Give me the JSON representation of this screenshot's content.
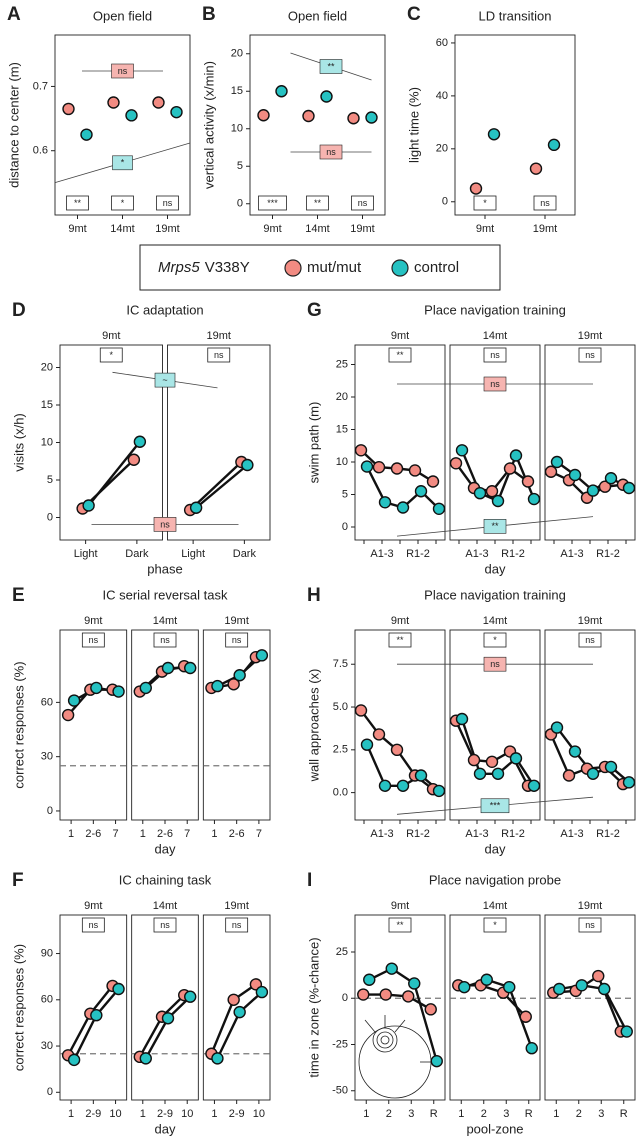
{
  "legend": {
    "gene": "Mrps5",
    "allele": "V338Y",
    "entries": [
      {
        "name": "mut/mut",
        "color": "#f28b82"
      },
      {
        "name": "control",
        "color": "#26c2c2"
      }
    ]
  },
  "chart_data": [
    {
      "type": "dot",
      "letter": "A",
      "title": "Open field",
      "ylabel": "distance to center (m)",
      "ylim": [
        0.5,
        0.78
      ],
      "yticks": [
        0.6,
        0.7
      ],
      "categories": [
        "9mt",
        "14mt",
        "19mt"
      ],
      "category_sigs": [
        "**",
        "*",
        "ns"
      ],
      "series": [
        {
          "values": [
            0.665,
            0.675,
            0.675
          ]
        },
        {
          "values": [
            0.625,
            0.655,
            0.66
          ]
        }
      ],
      "annotations": [
        {
          "text": "ns",
          "color": "#f6b4b0"
        },
        {
          "text": "*",
          "color": "#a9e6e6"
        }
      ]
    },
    {
      "type": "dot",
      "letter": "B",
      "title": "Open field",
      "ylabel": "vertical activity (x/min)",
      "ylim": [
        -1.5,
        22.5
      ],
      "yticks": [
        0,
        5,
        10,
        15,
        20
      ],
      "categories": [
        "9mt",
        "14mt",
        "19mt"
      ],
      "category_sigs": [
        "***",
        "**",
        "ns"
      ],
      "series": [
        {
          "values": [
            11.8,
            11.7,
            11.4
          ]
        },
        {
          "values": [
            15.0,
            14.3,
            11.5
          ]
        }
      ],
      "annotations": [
        {
          "text": "**",
          "color": "#a9e6e6"
        },
        {
          "text": "ns",
          "color": "#f6b4b0"
        }
      ]
    },
    {
      "type": "dot",
      "letter": "C",
      "title": "LD transition",
      "ylabel": "light time (%)",
      "ylim": [
        -5,
        63
      ],
      "yticks": [
        0,
        20,
        40,
        60
      ],
      "categories": [
        "9mt",
        "19mt"
      ],
      "category_sigs": [
        "*",
        "ns"
      ],
      "series": [
        {
          "values": [
            5,
            12.5
          ]
        },
        {
          "values": [
            25.5,
            21.5
          ]
        }
      ],
      "annotations": []
    },
    {
      "type": "line",
      "letter": "D",
      "title": "IC adaptation",
      "ylabel": "visits (x/h)",
      "xlabel": "phase",
      "ylim": [
        -3,
        23
      ],
      "yticks": [
        0,
        5,
        10,
        15,
        20
      ],
      "facets": [
        {
          "label": "9mt",
          "sig": "*",
          "categories": [
            "Light",
            "Dark"
          ],
          "series": [
            {
              "values": [
                1.2,
                7.7
              ]
            },
            {
              "values": [
                1.6,
                10.1
              ]
            }
          ]
        },
        {
          "label": "19mt",
          "sig": "ns",
          "categories": [
            "Light",
            "Dark"
          ],
          "series": [
            {
              "values": [
                1.0,
                7.4
              ]
            },
            {
              "values": [
                1.3,
                7.0
              ]
            }
          ]
        }
      ],
      "annotations": [
        {
          "text": "~",
          "color": "#a9e6e6"
        },
        {
          "text": "ns",
          "color": "#f6b4b0"
        }
      ]
    },
    {
      "type": "line",
      "letter": "E",
      "title": "IC serial reversal task",
      "ylabel": "correct responses (%)",
      "xlabel": "day",
      "ylim": [
        -5,
        100
      ],
      "yticks": [
        0,
        30,
        60
      ],
      "reference_line": 25,
      "facets": [
        {
          "label": "9mt",
          "sig": "ns",
          "categories": [
            "1",
            "2-6",
            "7"
          ],
          "series": [
            {
              "values": [
                53,
                67,
                67
              ]
            },
            {
              "values": [
                61,
                68,
                66
              ]
            }
          ]
        },
        {
          "label": "14mt",
          "sig": "ns",
          "categories": [
            "1",
            "2-6",
            "7"
          ],
          "series": [
            {
              "values": [
                66,
                77,
                80
              ]
            },
            {
              "values": [
                68,
                79,
                79
              ]
            }
          ]
        },
        {
          "label": "19mt",
          "sig": "ns",
          "categories": [
            "1",
            "2-6",
            "7"
          ],
          "series": [
            {
              "values": [
                68,
                70,
                85
              ]
            },
            {
              "values": [
                69,
                75,
                86
              ]
            }
          ]
        }
      ],
      "annotations": []
    },
    {
      "type": "line",
      "letter": "F",
      "title": "IC chaining task",
      "ylabel": "correct responses (%)",
      "xlabel": "day",
      "ylim": [
        -5,
        115
      ],
      "yticks": [
        0,
        30,
        60,
        90
      ],
      "reference_line": 25,
      "facets": [
        {
          "label": "9mt",
          "sig": "ns",
          "categories": [
            "1",
            "2-9",
            "10"
          ],
          "series": [
            {
              "values": [
                24,
                51,
                69
              ]
            },
            {
              "values": [
                21,
                50,
                67
              ]
            }
          ]
        },
        {
          "label": "14mt",
          "sig": "ns",
          "categories": [
            "1",
            "2-9",
            "10"
          ],
          "series": [
            {
              "values": [
                23,
                49,
                63
              ]
            },
            {
              "values": [
                22,
                48,
                62
              ]
            }
          ]
        },
        {
          "label": "19mt",
          "sig": "ns",
          "categories": [
            "1",
            "2-9",
            "10"
          ],
          "series": [
            {
              "values": [
                25,
                60,
                70
              ]
            },
            {
              "values": [
                22,
                52,
                65
              ]
            }
          ]
        }
      ],
      "annotations": []
    },
    {
      "type": "line",
      "letter": "G",
      "title": "Place navigation training",
      "ylabel": "swim path (m)",
      "xlabel": "day",
      "ylim": [
        -2,
        28
      ],
      "yticks": [
        0,
        5,
        10,
        15,
        20,
        25
      ],
      "facets": [
        {
          "label": "9mt",
          "sig": "**",
          "categories": [
            null,
            "A1-3",
            null,
            "R1-2",
            null
          ],
          "series": [
            {
              "values": [
                11.8,
                9.2,
                9.0,
                8.7,
                7.0
              ]
            },
            {
              "values": [
                9.3,
                3.8,
                3.0,
                5.5,
                2.8
              ]
            }
          ]
        },
        {
          "label": "14mt",
          "sig": "ns",
          "categories": [
            null,
            "A1-3",
            null,
            "R1-2",
            null
          ],
          "series": [
            {
              "values": [
                9.8,
                6.0,
                5.5,
                9.0,
                7.0
              ]
            },
            {
              "values": [
                11.8,
                5.2,
                4.0,
                11.0,
                4.3
              ]
            }
          ]
        },
        {
          "label": "19mt",
          "sig": "ns",
          "categories": [
            null,
            "A1-3",
            null,
            "R1-2",
            null
          ],
          "series": [
            {
              "values": [
                8.5,
                7.2,
                4.5,
                6.2,
                6.5
              ]
            },
            {
              "values": [
                10.0,
                8.0,
                5.6,
                7.5,
                6.0
              ]
            }
          ]
        }
      ],
      "annotations": [
        {
          "text": "ns",
          "color": "#f6b4b0"
        },
        {
          "text": "**",
          "color": "#a9e6e6"
        }
      ]
    },
    {
      "type": "line",
      "letter": "H",
      "title": "Place navigation training",
      "ylabel": "wall approaches (x)",
      "xlabel": "day",
      "ylim": [
        -1.6,
        9.5
      ],
      "yticks": [
        {
          "value": 0,
          "label": "0.0"
        },
        2.5,
        {
          "value": 5,
          "label": "5.0"
        },
        7.5
      ],
      "facets": [
        {
          "label": "9mt",
          "sig": "**",
          "categories": [
            null,
            "A1-3",
            null,
            "R1-2",
            null
          ],
          "series": [
            {
              "values": [
                4.8,
                3.4,
                2.5,
                1.0,
                0.2
              ]
            },
            {
              "values": [
                2.8,
                0.4,
                0.4,
                1.0,
                0.1
              ]
            }
          ]
        },
        {
          "label": "14mt",
          "sig": "*",
          "categories": [
            null,
            "A1-3",
            null,
            "R1-2",
            null
          ],
          "series": [
            {
              "values": [
                4.2,
                1.9,
                1.8,
                2.4,
                0.4
              ]
            },
            {
              "values": [
                4.3,
                1.1,
                1.1,
                2.0,
                0.4
              ]
            }
          ]
        },
        {
          "label": "19mt",
          "sig": "ns",
          "categories": [
            null,
            "A1-3",
            null,
            "R1-2",
            null
          ],
          "series": [
            {
              "values": [
                3.4,
                1.0,
                1.4,
                1.5,
                0.5
              ]
            },
            {
              "values": [
                3.8,
                2.4,
                1.1,
                1.5,
                0.6
              ]
            }
          ]
        }
      ],
      "annotations": [
        {
          "text": "ns",
          "color": "#f6b4b0"
        },
        {
          "text": "***",
          "color": "#a9e6e6"
        }
      ]
    },
    {
      "type": "line",
      "letter": "I",
      "title": "Place navigation probe",
      "ylabel": "time in zone (%-chance)",
      "xlabel": "pool-zone",
      "ylim": [
        -55,
        45
      ],
      "yticks": [
        -50,
        -25,
        0,
        25
      ],
      "reference_line": 0,
      "facets": [
        {
          "label": "9mt",
          "sig": "**",
          "categories": [
            "1",
            "2",
            "3",
            "R"
          ],
          "series": [
            {
              "values": [
                2,
                2,
                1,
                -6
              ]
            },
            {
              "values": [
                10,
                16,
                8,
                -34
              ]
            }
          ]
        },
        {
          "label": "14mt",
          "sig": "*",
          "categories": [
            "1",
            "2",
            "3",
            "R"
          ],
          "series": [
            {
              "values": [
                7,
                7,
                3,
                -10
              ]
            },
            {
              "values": [
                6,
                10,
                6,
                -27
              ]
            }
          ]
        },
        {
          "label": "19mt",
          "sig": "ns",
          "categories": [
            "1",
            "2",
            "3",
            "R"
          ],
          "series": [
            {
              "values": [
                3,
                4,
                12,
                -18
              ]
            },
            {
              "values": [
                5,
                7,
                5,
                -18
              ]
            }
          ]
        }
      ],
      "annotations": []
    }
  ]
}
